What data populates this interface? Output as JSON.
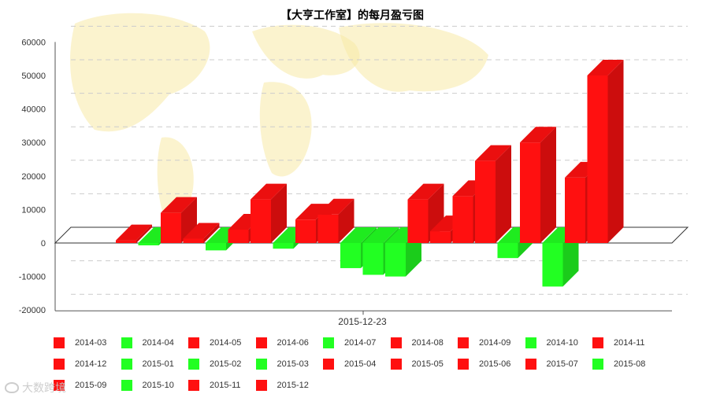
{
  "chart_data": {
    "type": "bar",
    "title": "【大亨工作室】的每月盈亏图",
    "xlabel": "2015-12-23",
    "ylabel": "",
    "ylim": [
      -20000,
      60000
    ],
    "yticks": [
      "60000",
      "50000",
      "40000",
      "30000",
      "20000",
      "10000",
      "0",
      "-10000",
      "-20000"
    ],
    "grid": true,
    "legend_position": "bottom",
    "positive_color": "#ff1010",
    "negative_color": "#22ff22",
    "series": [
      {
        "name": "2014-03",
        "value": 800
      },
      {
        "name": "2014-04",
        "value": -700
      },
      {
        "name": "2014-05",
        "value": 9000
      },
      {
        "name": "2014-06",
        "value": 1300
      },
      {
        "name": "2014-07",
        "value": -2200
      },
      {
        "name": "2014-08",
        "value": 4000
      },
      {
        "name": "2014-09",
        "value": 13000
      },
      {
        "name": "2014-10",
        "value": -1700
      },
      {
        "name": "2014-11",
        "value": 7000
      },
      {
        "name": "2014-12",
        "value": 8500
      },
      {
        "name": "2015-01",
        "value": -7500
      },
      {
        "name": "2015-02",
        "value": -9500
      },
      {
        "name": "2015-03",
        "value": -10000
      },
      {
        "name": "2015-04",
        "value": 13000
      },
      {
        "name": "2015-05",
        "value": 3500
      },
      {
        "name": "2015-06",
        "value": 14000
      },
      {
        "name": "2015-07",
        "value": 24500
      },
      {
        "name": "2015-08",
        "value": -4500
      },
      {
        "name": "2015-09",
        "value": 30000
      },
      {
        "name": "2015-10",
        "value": -13000
      },
      {
        "name": "2015-11",
        "value": 19500
      },
      {
        "name": "2015-12",
        "value": 50000
      }
    ]
  },
  "watermark": {
    "text": "大数跨境",
    "icon": "logo-icon"
  }
}
